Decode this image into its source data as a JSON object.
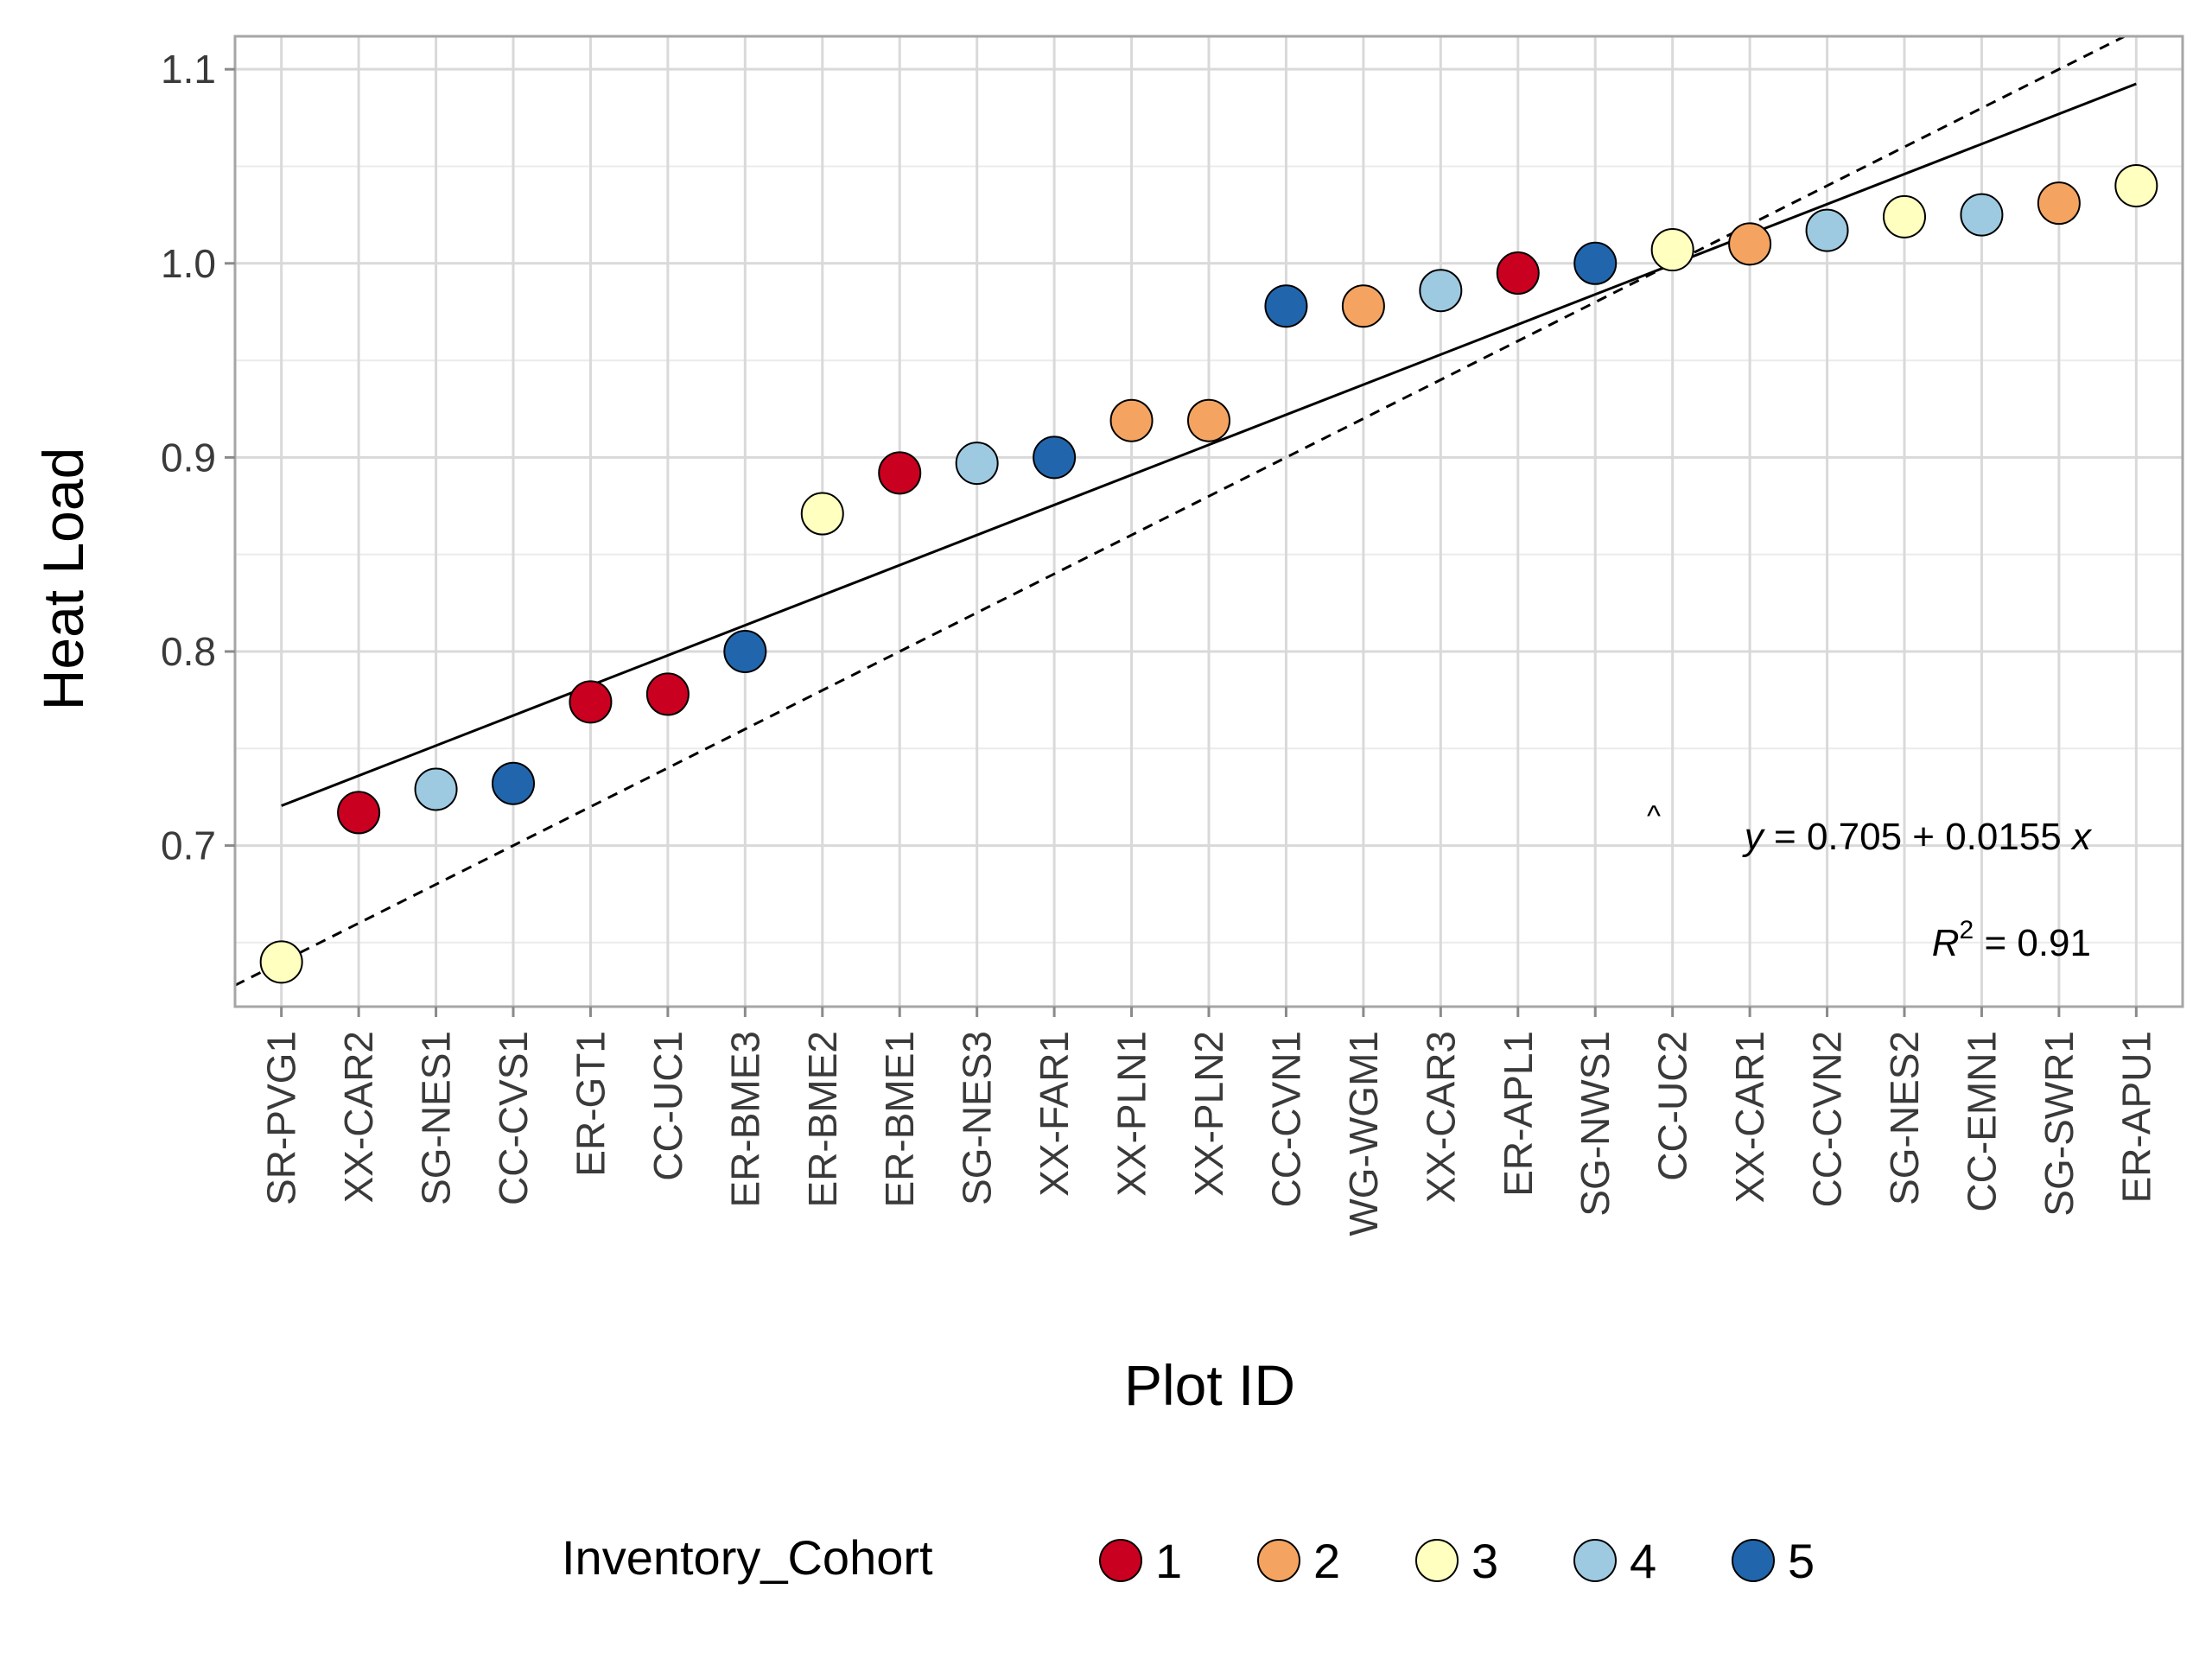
{
  "chart_data": {
    "type": "scatter",
    "xlabel": "Plot ID",
    "ylabel": "Heat Load",
    "categories": [
      "SR-PVG1",
      "XX-CAR2",
      "SG-NES1",
      "CC-CVS1",
      "ER-GT1",
      "CC-UC1",
      "ER-BME3",
      "ER-BME2",
      "ER-BME1",
      "SG-NES3",
      "XX-FAR1",
      "XX-PLN1",
      "XX-PLN2",
      "CC-CVN1",
      "WG-WGM1",
      "XX-CAR3",
      "ER-APL1",
      "SG-NWS1",
      "CC-UC2",
      "XX-CAR1",
      "CC-CVN2",
      "SG-NES2",
      "CC-EMN1",
      "SG-SWR1",
      "ER-APU1"
    ],
    "values": [
      0.64,
      0.717,
      0.729,
      0.732,
      0.774,
      0.778,
      0.8,
      0.871,
      0.892,
      0.897,
      0.9,
      0.919,
      0.919,
      0.978,
      0.978,
      0.986,
      0.995,
      1.0,
      1.007,
      1.01,
      1.017,
      1.024,
      1.025,
      1.031,
      1.04
    ],
    "cohorts": [
      3,
      1,
      4,
      5,
      1,
      1,
      5,
      3,
      1,
      4,
      5,
      2,
      2,
      5,
      2,
      4,
      1,
      5,
      3,
      2,
      4,
      3,
      4,
      2,
      3
    ],
    "yticks": [
      "0.7",
      "0.8",
      "0.9",
      "1.0",
      "1.1"
    ],
    "ylim": [
      0.617,
      1.117
    ],
    "grid": true,
    "fit_line": {
      "intercept": 0.705,
      "slope": 0.0155
    },
    "reference_line": {
      "intercept": 0.62,
      "slope": 0.02,
      "style": "dashed"
    },
    "annotations": {
      "equation_y": "y",
      "equation_rest": " = 0.705 + 0.0155 ",
      "equation_x": "x",
      "r2_r": "R",
      "r2_sup": "2",
      "r2_rest": " = 0.91"
    },
    "legend": {
      "title": "Inventory_Cohort",
      "position": "bottom",
      "items": [
        {
          "label": "1",
          "color": "#ca0020"
        },
        {
          "label": "2",
          "color": "#f4a460"
        },
        {
          "label": "3",
          "color": "#ffffbf"
        },
        {
          "label": "4",
          "color": "#9ecae1"
        },
        {
          "label": "5",
          "color": "#2166ac"
        }
      ]
    }
  }
}
